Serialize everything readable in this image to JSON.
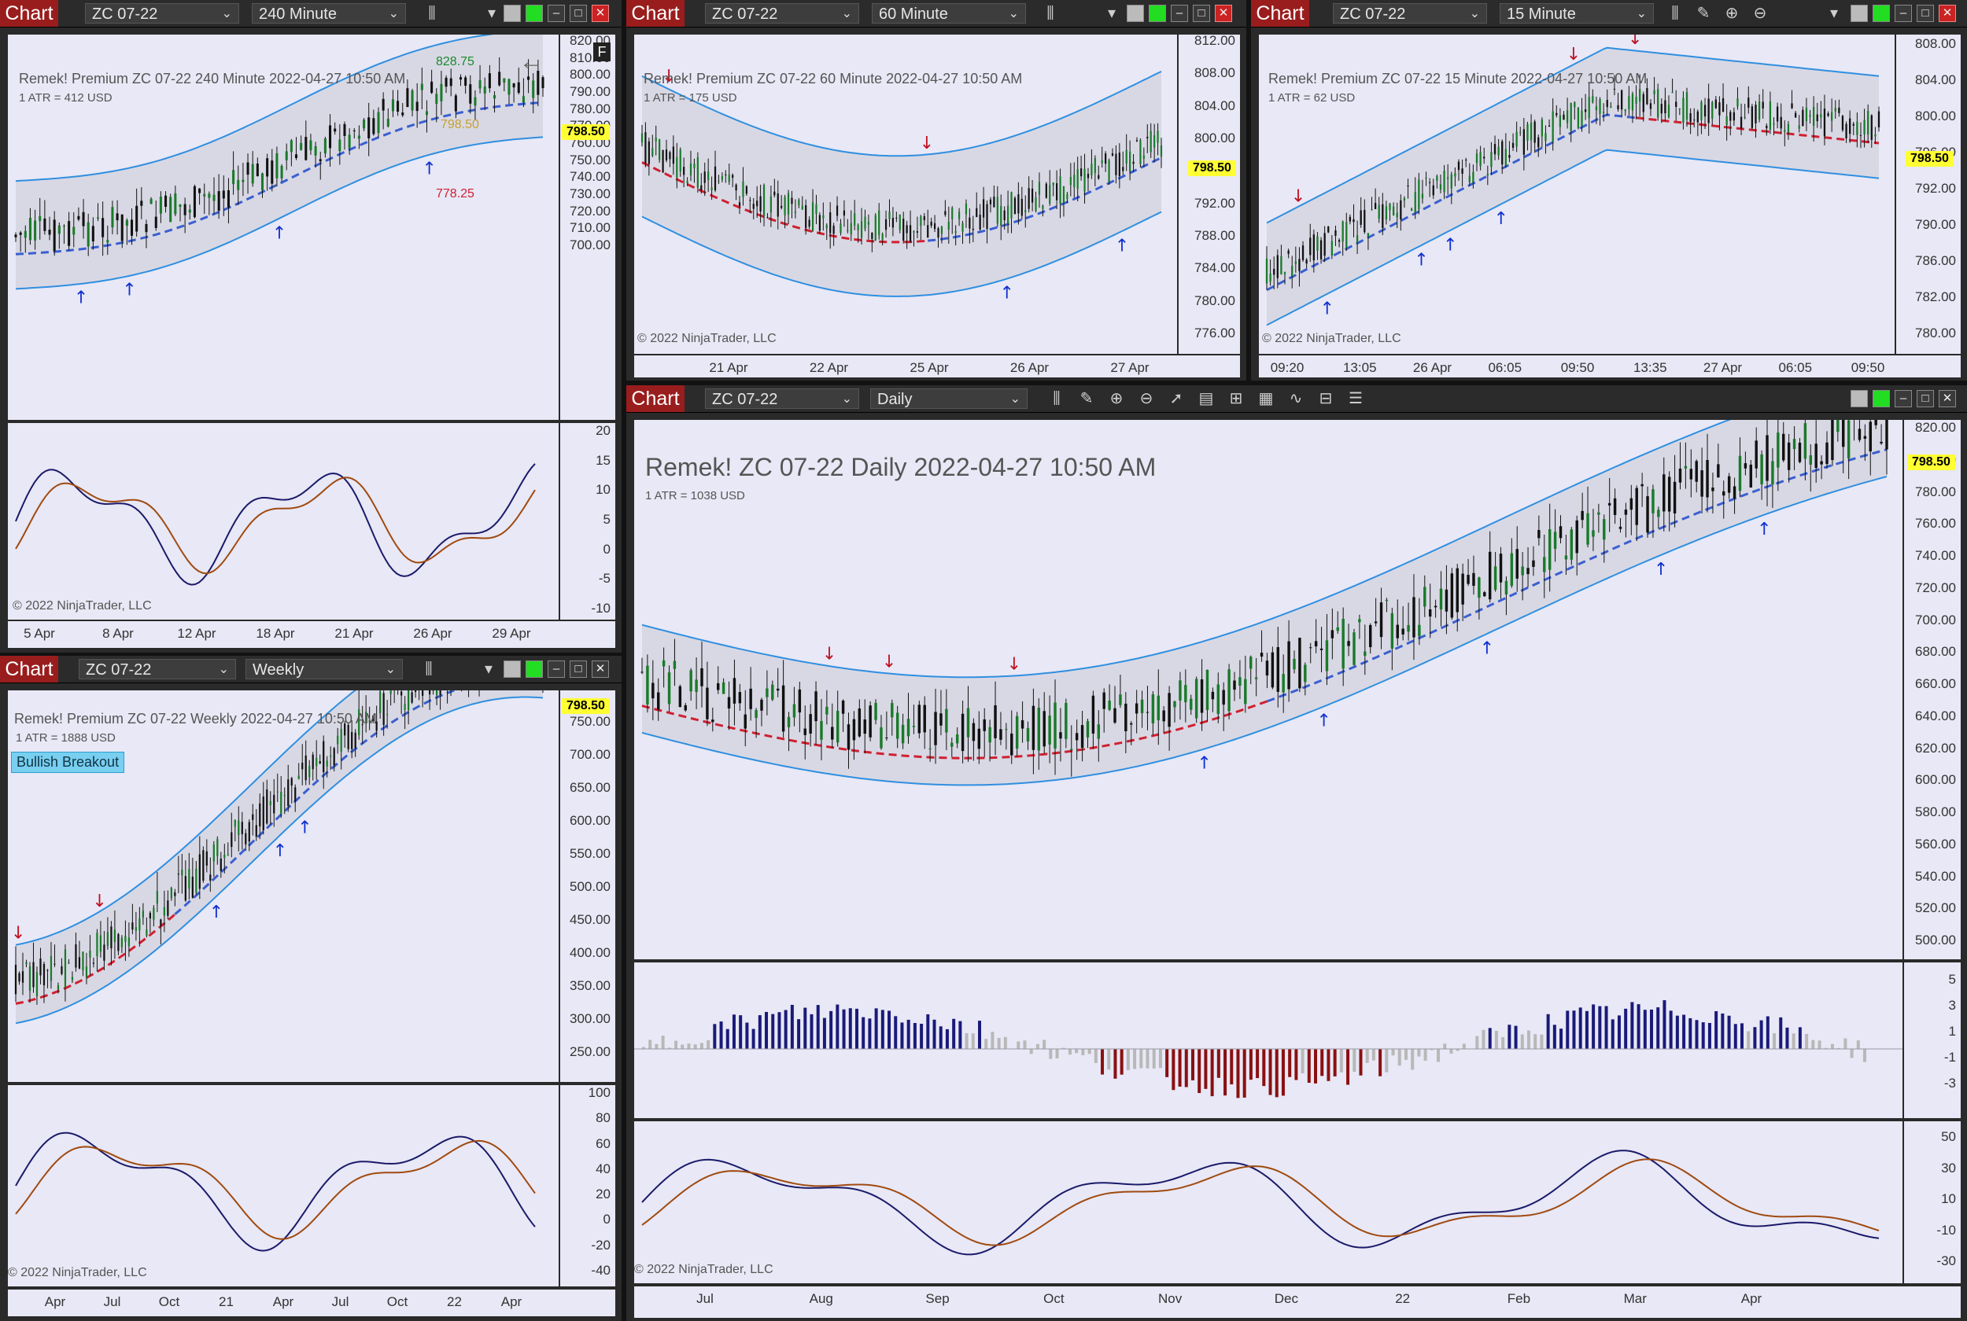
{
  "colors": {
    "chart_tab": "#9a1d1d",
    "plot_bg": "#e8e8f6",
    "band": "#d8d8e4",
    "band_line": "#2f8fe0",
    "mid_blue": "#3a5fd0",
    "mid_red": "#d02030",
    "price_tag": "#ffff33",
    "hist_pos": "#1a1a7a",
    "hist_neg": "#8a1010",
    "hist_neutral": "#b8b8b8",
    "osc_fast": "#1a1a6a",
    "osc_slow": "#a04a10"
  },
  "icons": {
    "bar_style": "bar-chart-icon",
    "pencil": "pencil-icon",
    "zoom_in": "zoom-in-icon",
    "zoom_out": "zoom-out-icon",
    "pointer": "arrow-pointer-icon",
    "data_box": "data-box-icon",
    "strategies": "strategies-icon",
    "indicators": "indicators-icon",
    "properties": "properties-icon",
    "list": "list-icon"
  },
  "windows": {
    "w240": {
      "tab": "Chart",
      "instrument": "ZC 07-22",
      "interval": "240 Minute",
      "title": "Remek!  Premium  ZC 07-22  240 Minute  2022-04-27 10:50 AM",
      "atr": "1 ATR = 412 USD",
      "copyright": "© 2022 NinjaTrader, LLC",
      "price_tag": "798.50",
      "target_up": "828.75",
      "target_down": "778.25",
      "inner_label": "798.50",
      "flag": "F",
      "y_labels": [
        "820.00",
        "810.00",
        "800.00",
        "790.00",
        "780.00",
        "770.00",
        "760.00",
        "750.00",
        "740.00",
        "730.00",
        "720.00",
        "710.00",
        "700.00"
      ],
      "osc_labels": [
        "20",
        "15",
        "10",
        "5",
        "0",
        "-5",
        "-10"
      ],
      "x_labels": [
        "5 Apr",
        "8 Apr",
        "12 Apr",
        "18 Apr",
        "21 Apr",
        "26 Apr",
        "29 Apr"
      ]
    },
    "w60": {
      "tab": "Chart",
      "instrument": "ZC 07-22",
      "interval": "60 Minute",
      "title": "Remek!  Premium  ZC 07-22  60 Minute  2022-04-27 10:50 AM",
      "atr": "1 ATR = 175 USD",
      "copyright": "© 2022 NinjaTrader, LLC",
      "price_tag": "798.50",
      "y_labels": [
        "812.00",
        "808.00",
        "804.00",
        "800.00",
        "796.00",
        "792.00",
        "788.00",
        "784.00",
        "780.00",
        "776.00"
      ],
      "x_labels": [
        "21 Apr",
        "22 Apr",
        "25 Apr",
        "26 Apr",
        "27 Apr"
      ]
    },
    "w15": {
      "tab": "Chart",
      "instrument": "ZC 07-22",
      "interval": "15 Minute",
      "title": "Remek!  Premium  ZC 07-22  15 Minute  2022-04-27 10:50 AM",
      "atr": "1 ATR = 62 USD",
      "copyright": "© 2022 NinjaTrader, LLC",
      "price_tag": "798.50",
      "y_labels": [
        "808.00",
        "804.00",
        "800.00",
        "796.00",
        "792.00",
        "790.00",
        "786.00",
        "782.00",
        "780.00"
      ],
      "x_labels": [
        "09:20",
        "13:05",
        "26 Apr",
        "06:05",
        "09:50",
        "13:35",
        "27 Apr",
        "06:05",
        "09:50"
      ]
    },
    "wweek": {
      "tab": "Chart",
      "instrument": "ZC 07-22",
      "interval": "Weekly",
      "title": "Remek!  Premium  ZC 07-22  Weekly  2022-04-27 10:50 AM",
      "atr": "1 ATR = 1888 USD",
      "copyright": "© 2022 NinjaTrader, LLC",
      "price_tag": "798.50",
      "badge": "Bullish Breakout",
      "y_labels": [
        "750.00",
        "700.00",
        "650.00",
        "600.00",
        "550.00",
        "500.00",
        "450.00",
        "400.00",
        "350.00",
        "300.00",
        "250.00"
      ],
      "osc_labels": [
        "100",
        "80",
        "60",
        "40",
        "20",
        "0",
        "-20",
        "-40"
      ],
      "x_labels": [
        "Apr",
        "Jul",
        "Oct",
        "21",
        "Apr",
        "Jul",
        "Oct",
        "22",
        "Apr"
      ]
    },
    "wday": {
      "tab": "Chart",
      "instrument": "ZC 07-22",
      "interval": "Daily",
      "title": "Remek!  ZC 07-22  Daily  2022-04-27 10:50 AM",
      "atr": "1 ATR = 1038 USD",
      "copyright": "© 2022 NinjaTrader, LLC",
      "price_tag": "798.50",
      "y_labels": [
        "820.00",
        "800.00",
        "780.00",
        "760.00",
        "740.00",
        "720.00",
        "700.00",
        "680.00",
        "660.00",
        "640.00",
        "620.00",
        "600.00",
        "580.00",
        "560.00",
        "540.00",
        "520.00",
        "500.00"
      ],
      "hist_labels": [
        "5",
        "3",
        "1",
        "-1",
        "-3"
      ],
      "osc_labels": [
        "50",
        "30",
        "10",
        "-10",
        "-30"
      ],
      "x_labels": [
        "Jul",
        "Aug",
        "Sep",
        "Oct",
        "Nov",
        "Dec",
        "22",
        "Feb",
        "Mar",
        "Apr"
      ]
    }
  }
}
